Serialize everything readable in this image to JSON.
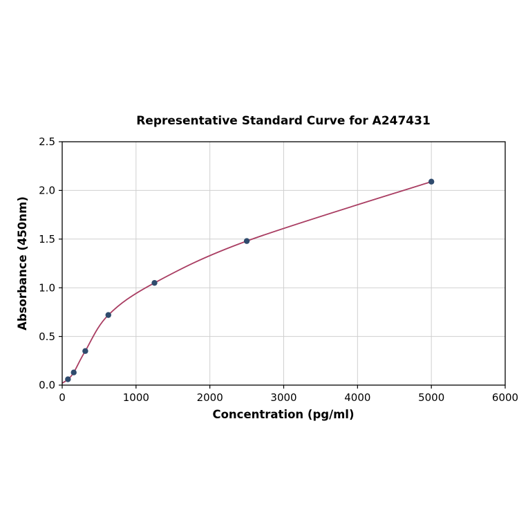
{
  "chart_data": {
    "type": "scatter",
    "title": "Representative Standard Curve for A247431",
    "xlabel": "Concentration (pg/ml)",
    "ylabel": "Absorbance (450nm)",
    "xlim": [
      0,
      6000
    ],
    "ylim": [
      0,
      2.5
    ],
    "x_ticks": [
      0,
      1000,
      2000,
      3000,
      4000,
      5000,
      6000
    ],
    "x_tick_labels": [
      "0",
      "1000",
      "2000",
      "3000",
      "4000",
      "5000",
      "6000"
    ],
    "y_ticks": [
      0,
      0.5,
      1.0,
      1.5,
      2.0,
      2.5
    ],
    "y_tick_labels": [
      "0.0",
      "0.5",
      "1.0",
      "1.5",
      "2.0",
      "2.5"
    ],
    "grid": true,
    "legend": "none",
    "curve_start": {
      "x": 0,
      "y": 0.02
    },
    "points": [
      {
        "x": 78.1,
        "y": 0.06
      },
      {
        "x": 156.3,
        "y": 0.13
      },
      {
        "x": 312.5,
        "y": 0.35
      },
      {
        "x": 625,
        "y": 0.72
      },
      {
        "x": 1250,
        "y": 1.05
      },
      {
        "x": 2500,
        "y": 1.48
      },
      {
        "x": 5000,
        "y": 2.09
      }
    ],
    "curve_color": "#a93d62",
    "point_color": "#2f4b6d",
    "grid_color": "#cfcfcf",
    "axis_color": "#000000",
    "background_color": "#ffffff"
  }
}
